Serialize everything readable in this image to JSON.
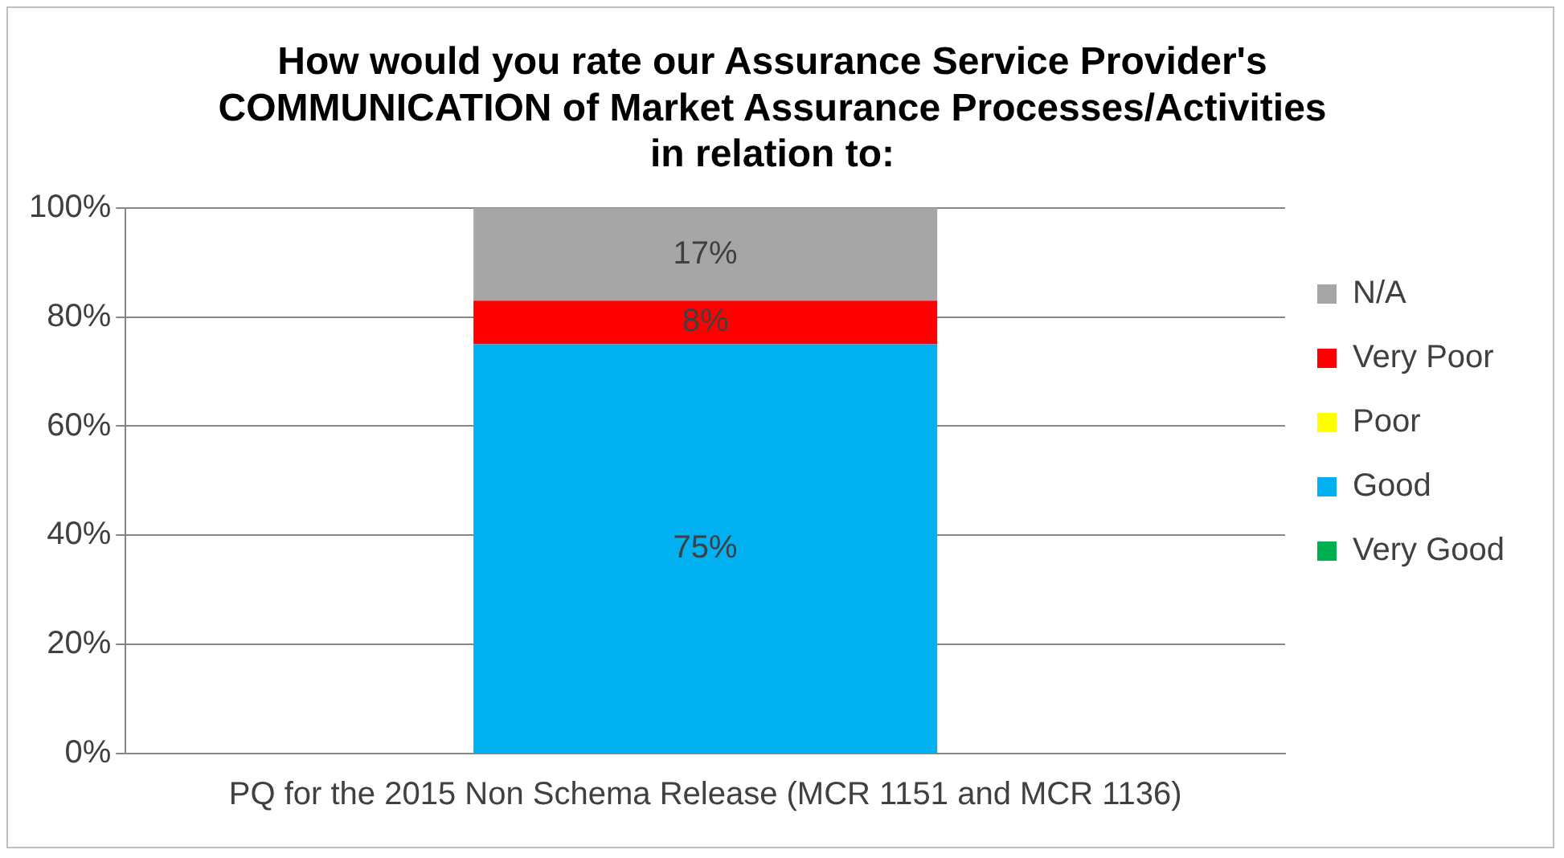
{
  "chart_data": {
    "type": "bar",
    "stacked": true,
    "title": "How would you rate our Assurance Service Provider's COMMUNICATION of Market Assurance Processes/Activities in relation to:",
    "categories": [
      "PQ for the 2015 Non Schema Release (MCR 1151 and MCR 1136)"
    ],
    "series": [
      {
        "name": "Very Good",
        "color": "#00b050",
        "values": [
          0
        ],
        "value_labels": [
          null
        ]
      },
      {
        "name": "Good",
        "color": "#00b0f0",
        "values": [
          75
        ],
        "value_labels": [
          "75%"
        ]
      },
      {
        "name": "Poor",
        "color": "#ffff00",
        "values": [
          0
        ],
        "value_labels": [
          null
        ]
      },
      {
        "name": "Very Poor",
        "color": "#ff0000",
        "values": [
          8
        ],
        "value_labels": [
          "8%"
        ]
      },
      {
        "name": "N/A",
        "color": "#a6a6a6",
        "values": [
          17
        ],
        "value_labels": [
          "17%"
        ]
      }
    ],
    "ylim": [
      0,
      100
    ],
    "yticks": [
      {
        "value": 0,
        "label": "0%"
      },
      {
        "value": 20,
        "label": "20%"
      },
      {
        "value": 40,
        "label": "40%"
      },
      {
        "value": 60,
        "label": "60%"
      },
      {
        "value": 80,
        "label": "80%"
      },
      {
        "value": 100,
        "label": "100%"
      }
    ],
    "grid": "y",
    "legend": "right"
  }
}
